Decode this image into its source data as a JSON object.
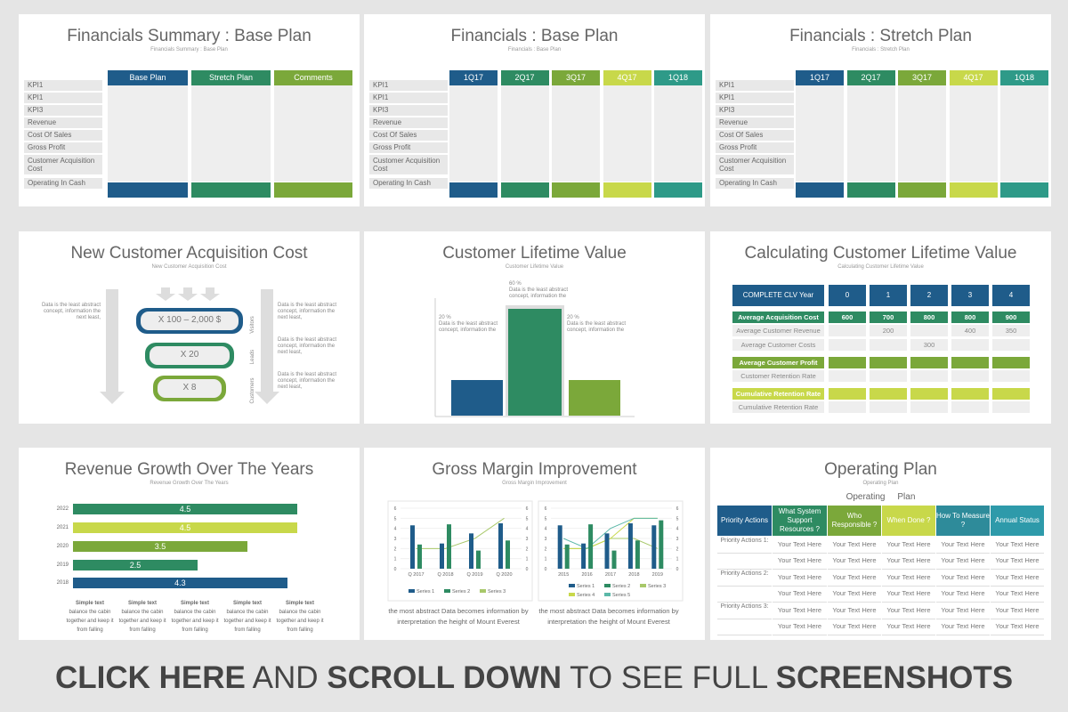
{
  "slides": {
    "s1": {
      "title": "Financials Summary : Base Plan",
      "subtitle": "Financials Summary : Base Plan",
      "headers": [
        "Base Plan",
        "Stretch Plan",
        "Comments"
      ]
    },
    "s2": {
      "title": "Financials : Base Plan",
      "subtitle": "Financials : Base Plan",
      "headers": [
        "1Q17",
        "2Q17",
        "3Q17",
        "4Q17",
        "1Q18"
      ]
    },
    "s3": {
      "title": "Financials : Stretch Plan",
      "subtitle": "Financials : Stretch Plan",
      "headers": [
        "1Q17",
        "2Q17",
        "3Q17",
        "4Q17",
        "1Q18"
      ]
    },
    "rows": [
      "KPI1",
      "KPI1",
      "KPI3",
      "Revenue",
      "Cost Of Sales",
      "Gross Profit",
      "Customer Acquisition Cost",
      "Operating In Cash"
    ],
    "s4": {
      "title": "New Customer Acquisition Cost",
      "subtitle": "New Customer Acquisition Cost",
      "left_text": "Data is the least abstract concept, information the next least,",
      "funnel": [
        "X 100 – 2,000 $",
        "X 20",
        "X 8"
      ],
      "stages": [
        "Visitors",
        "Leads",
        "Customers"
      ],
      "right_texts": [
        "Data is the least abstract concept, information the next least,",
        "Data is the least abstract concept, information the next least,",
        "Data is the least abstract concept, information the next least,"
      ]
    },
    "s5": {
      "title": "Customer Lifetime Value",
      "subtitle": "Customer Lifetime Value",
      "bars": [
        {
          "pct": "20 %",
          "text": "Data is the least abstract concept, information the",
          "value": 20,
          "color": "#1f5c8a"
        },
        {
          "pct": "60 %",
          "text": "Data is the least abstract concept, information the",
          "value": 60,
          "color": "#2e8b62"
        },
        {
          "pct": "20 %",
          "text": "Data is the least abstract concept, information the",
          "value": 20,
          "color": "#7ba83a"
        }
      ]
    },
    "s6": {
      "title": "Calculating Customer Lifetime Value",
      "subtitle": "Calculating Customer Lifetime Value",
      "header": "COMPLETE CLV Year",
      "years": [
        "0",
        "1",
        "2",
        "3",
        "4"
      ],
      "rows": [
        {
          "label": "Average Acquisition Cost",
          "style": "green",
          "vals": [
            "600",
            "700",
            "800",
            "800",
            "900"
          ]
        },
        {
          "label": "Average Customer Revenue",
          "style": "plain",
          "vals": [
            "",
            "200",
            "",
            "400",
            "350"
          ]
        },
        {
          "label": "Average Customer Costs",
          "style": "plain",
          "vals": [
            "",
            "",
            "300",
            "",
            ""
          ]
        },
        {
          "label": "Average Customer Profit",
          "style": "lime",
          "vals": [
            "",
            "",
            "",
            "",
            ""
          ]
        },
        {
          "label": "Customer Retention Rate",
          "style": "plain",
          "vals": [
            "",
            "",
            "",
            "",
            ""
          ]
        },
        {
          "label": "Cumulative Retention Rate",
          "style": "yellow",
          "vals": [
            "",
            "",
            "",
            "",
            ""
          ]
        },
        {
          "label": "Cumulative Retention Rate",
          "style": "plain",
          "vals": [
            "",
            "",
            "",
            "",
            ""
          ]
        }
      ]
    },
    "s7": {
      "title": "Revenue Growth Over The Years",
      "subtitle": "Revenue Growth Over The Years",
      "bars": [
        {
          "year": "2022",
          "value": "4.5",
          "color": "#2e8b62"
        },
        {
          "year": "2021",
          "value": "4.5",
          "color": "#c8d84a"
        },
        {
          "year": "2020",
          "value": "3.5",
          "color": "#7ba83a"
        },
        {
          "year": "2019",
          "value": "2.5",
          "color": "#2e8b62"
        },
        {
          "year": "2018",
          "value": "4.3",
          "color": "#1f5c8a"
        }
      ],
      "notes": [
        {
          "head": "Simple text",
          "body": "balance the cabin together and keep it from falling"
        },
        {
          "head": "Simple text",
          "body": "balance the cabin together and keep it from falling"
        },
        {
          "head": "Simple text",
          "body": "balance the cabin together and keep it from falling"
        },
        {
          "head": "Simple text",
          "body": "balance the cabin together and keep it from falling"
        },
        {
          "head": "Simple text",
          "body": "balance the cabin together and keep it from falling"
        }
      ]
    },
    "s8": {
      "title": "Gross Margin Improvement",
      "subtitle": "Gross Margin Improvement",
      "caption1": "the most abstract Data becomes information by interpretation the height of Mount Everest",
      "caption2": "the most abstract Data becomes information by interpretation the height of Mount Everest"
    },
    "s9": {
      "title": "Operating Plan",
      "subtitle": "Operating Plan",
      "heading": "Operating     Plan",
      "headers": [
        "Priority Actions",
        "What System Support Resources ?",
        "Who Responsible ?",
        "When Done ?",
        "How To Measure ?",
        "Annual Status"
      ],
      "row_labels": [
        "Priority Actions 1:",
        "",
        "Priority Actions 2:",
        "",
        "Priority Actions 3:",
        ""
      ],
      "cell": "Your Text Here"
    }
  },
  "banner": {
    "a": "CLICK HERE",
    "b": " AND ",
    "c": "SCROLL DOWN",
    "d": " TO SEE FULL ",
    "e": "SCREENSHOTS"
  },
  "chart_data": [
    {
      "type": "bar",
      "title": "",
      "categories": [
        "20 %",
        "60 %",
        "20 %"
      ],
      "values": [
        20,
        60,
        20
      ]
    },
    {
      "type": "bar",
      "title": "",
      "categories": [
        "2022",
        "2021",
        "2020",
        "2019",
        "2018"
      ],
      "values": [
        4.5,
        4.5,
        3.5,
        2.5,
        4.3
      ]
    },
    {
      "type": "bar",
      "categories": [
        "Q 2017",
        "Q 2018",
        "Q 2019",
        "Q 2020"
      ],
      "ylim": [
        0,
        6
      ],
      "series": [
        {
          "name": "Series 1",
          "values": [
            4.3,
            2.5,
            3.5,
            4.5
          ]
        },
        {
          "name": "Series 2",
          "values": [
            2.4,
            4.4,
            1.8,
            2.8
          ]
        },
        {
          "name": "Series 3",
          "values": [
            2,
            2,
            3,
            5
          ]
        }
      ]
    },
    {
      "type": "bar",
      "categories": [
        "2015",
        "2016",
        "2017",
        "2018",
        "2019"
      ],
      "ylim": [
        0,
        6
      ],
      "series": [
        {
          "name": "Series 1",
          "values": [
            4.3,
            2.5,
            3.5,
            4.5,
            4.3
          ]
        },
        {
          "name": "Series 2",
          "values": [
            2.4,
            4.4,
            1.8,
            2.8,
            4.8
          ]
        },
        {
          "name": "Series 3",
          "values": [
            2,
            2,
            3,
            3,
            2
          ]
        },
        {
          "name": "Series 4",
          "values": [
            2,
            2,
            3,
            5,
            5
          ]
        },
        {
          "name": "Series 5",
          "values": [
            3,
            2,
            4,
            5,
            5
          ]
        }
      ]
    }
  ]
}
